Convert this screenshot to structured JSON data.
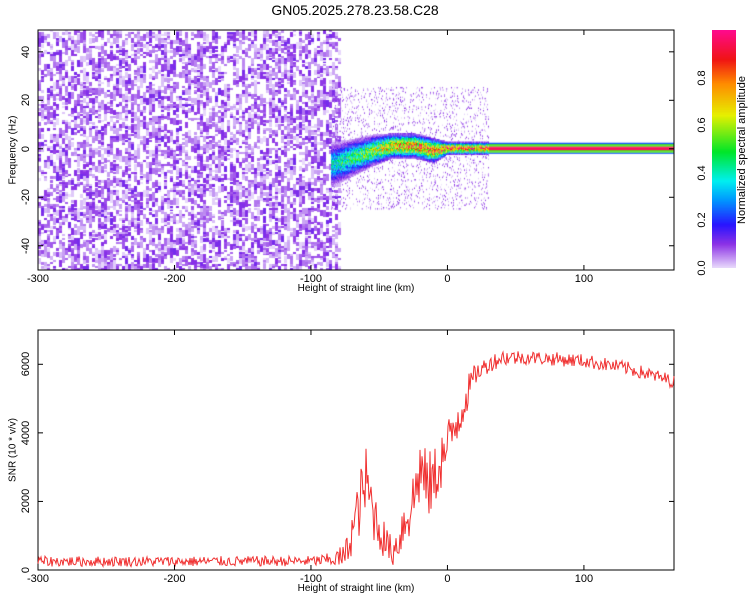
{
  "title": "GN05.2025.278.23.58.C28",
  "chart_data": [
    {
      "type": "heatmap",
      "xlabel": "Height of straight line (km)",
      "ylabel": "Frequency (Hz)",
      "xlim": [
        -300,
        166
      ],
      "ylim": [
        -50,
        49
      ],
      "xticks": [
        "-300",
        "-200",
        "-100",
        "0",
        "100"
      ],
      "xtick_values": [
        -300,
        -200,
        -100,
        0,
        100
      ],
      "yticks": [
        "40",
        "20",
        "0",
        "-20",
        "-40"
      ],
      "ytick_values": [
        40,
        20,
        0,
        -20,
        -40
      ],
      "noise_region_x": [
        -300,
        -80
      ],
      "noise_amplitude": 0.12,
      "signal_track": {
        "x": [
          -85,
          -70,
          -55,
          -40,
          -25,
          -10,
          0,
          30,
          166
        ],
        "center_hz": [
          -7,
          -4,
          -1,
          1,
          1,
          -1,
          0,
          0,
          0
        ],
        "half_width_hz": [
          7,
          6,
          5,
          4,
          4,
          4,
          2,
          2,
          2
        ],
        "peak_amplitude": [
          0.45,
          0.55,
          0.65,
          0.85,
          0.9,
          0.9,
          0.95,
          0.95,
          0.95
        ]
      },
      "colorbar": {
        "label": "Normalized spectral amplitude",
        "ticks": [
          "0.0",
          "0.2",
          "0.4",
          "0.6",
          "0.8"
        ],
        "tick_values": [
          0.0,
          0.2,
          0.4,
          0.6,
          0.8
        ],
        "range": [
          0,
          1
        ]
      }
    },
    {
      "type": "line",
      "xlabel": "Height of straight line (km)",
      "ylabel": "SNR (10 * v/v)",
      "xlim": [
        -300,
        166
      ],
      "ylim": [
        0,
        7000
      ],
      "xticks": [
        "-300",
        "-200",
        "-100",
        "0",
        "100"
      ],
      "xtick_values": [
        -300,
        -200,
        -100,
        0,
        100
      ],
      "yticks": [
        "0",
        "2000",
        "4000",
        "6000"
      ],
      "ytick_values": [
        0,
        2000,
        4000,
        6000
      ],
      "color": "#f03030",
      "series": [
        {
          "name": "SNR",
          "x": [
            -300,
            -200,
            -100,
            -85,
            -75,
            -65,
            -60,
            -55,
            -50,
            -45,
            -40,
            -35,
            -30,
            -25,
            -20,
            -15,
            -10,
            -5,
            0,
            5,
            10,
            15,
            20,
            30,
            40,
            60,
            100,
            130,
            166
          ],
          "y": [
            250,
            250,
            260,
            300,
            400,
            1800,
            2600,
            1800,
            1200,
            800,
            500,
            1000,
            1600,
            2000,
            3000,
            2400,
            2600,
            3200,
            3500,
            4200,
            4700,
            5200,
            5700,
            6000,
            6200,
            6200,
            6100,
            5900,
            5500
          ],
          "noise": [
            150,
            150,
            150,
            200,
            400,
            900,
            1100,
            900,
            700,
            500,
            400,
            700,
            900,
            1000,
            1100,
            1000,
            1000,
            900,
            900,
            800,
            800,
            500,
            300,
            250,
            250,
            200,
            200,
            200,
            200
          ]
        }
      ]
    }
  ]
}
